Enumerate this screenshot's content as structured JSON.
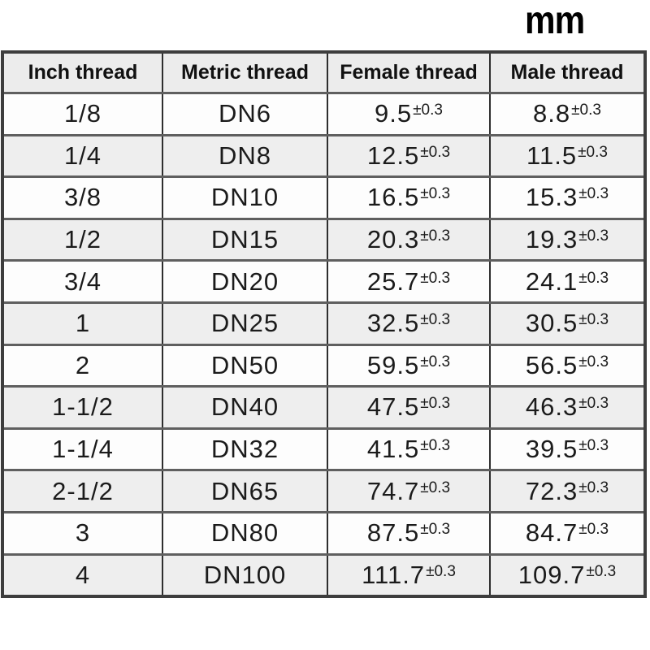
{
  "unit_label": "mm",
  "chart_data": {
    "type": "table",
    "unit": "mm",
    "columns": [
      "Inch thread",
      "Metric thread",
      "Female thread",
      "Male thread"
    ],
    "tolerance": "±0.3",
    "rows": [
      {
        "inch": "1/8",
        "metric": "DN6",
        "female": "9.5",
        "male": "8.8"
      },
      {
        "inch": "1/4",
        "metric": "DN8",
        "female": "12.5",
        "male": "11.5"
      },
      {
        "inch": "3/8",
        "metric": "DN10",
        "female": "16.5",
        "male": "15.3"
      },
      {
        "inch": "1/2",
        "metric": "DN15",
        "female": "20.3",
        "male": "19.3"
      },
      {
        "inch": "3/4",
        "metric": "DN20",
        "female": "25.7",
        "male": "24.1"
      },
      {
        "inch": "1",
        "metric": "DN25",
        "female": "32.5",
        "male": "30.5"
      },
      {
        "inch": "2",
        "metric": "DN50",
        "female": "59.5",
        "male": "56.5"
      },
      {
        "inch": "1-1/2",
        "metric": "DN40",
        "female": "47.5",
        "male": "46.3"
      },
      {
        "inch": "1-1/4",
        "metric": "DN32",
        "female": "41.5",
        "male": "39.5"
      },
      {
        "inch": "2-1/2",
        "metric": "DN65",
        "female": "74.7",
        "male": "72.3"
      },
      {
        "inch": "3",
        "metric": "DN80",
        "female": "87.5",
        "male": "84.7"
      },
      {
        "inch": "4",
        "metric": "DN100",
        "female": "111.7",
        "male": "109.7"
      }
    ],
    "layout": {
      "row_alternating_colors": [
        "#fdfdfd",
        "#eeeeee"
      ],
      "header_bg": "#ececec",
      "grid": "on"
    }
  }
}
